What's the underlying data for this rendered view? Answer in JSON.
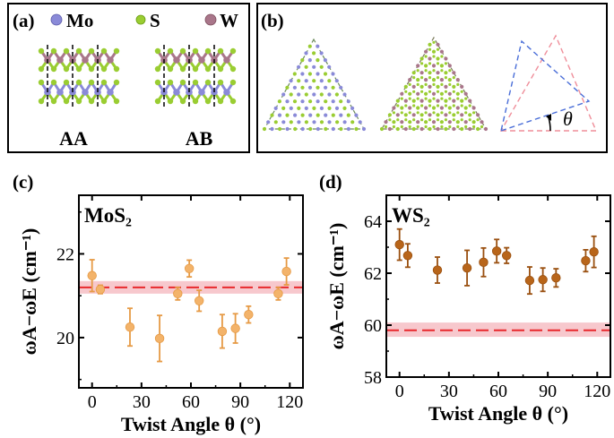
{
  "panel_a": {
    "label": "(a)",
    "legend": [
      {
        "symbol": "Mo",
        "color": "#8a8ad8"
      },
      {
        "symbol": "S",
        "color": "#9acd32"
      },
      {
        "symbol": "W",
        "color": "#a9768a"
      }
    ],
    "stackings": [
      "AA",
      "AB"
    ]
  },
  "panel_b": {
    "label": "(b)",
    "angle_symbol": "θ"
  },
  "colors": {
    "mo": "#8a8ad8",
    "s": "#9acd32",
    "w": "#a9768a",
    "mos2_points": "#f3b36a",
    "mos2_err": "#e69a45",
    "ws2_points": "#b8651a",
    "ws2_err": "#9a5010",
    "reference_line": "#e8282d",
    "reference_band": "#f7c8cd",
    "blue_dash": "#4a6ed8",
    "pink_dash": "#ef8e9a"
  },
  "chart_data": [
    {
      "panel": "(c)",
      "type": "scatter",
      "label": "MoS₂",
      "xlabel": "Twist Angle θ (°)",
      "ylabel": "ωA−ωE (cm⁻¹)",
      "xlim": [
        -8,
        128
      ],
      "ylim": [
        18.8,
        23.4
      ],
      "xticks": [
        0,
        30,
        60,
        90,
        120
      ],
      "yticks": [
        20,
        22
      ],
      "reference": {
        "value": 21.2,
        "band": [
          21.05,
          21.35
        ]
      },
      "points": [
        {
          "x": 0,
          "y": 21.48,
          "err": 0.38
        },
        {
          "x": 5,
          "y": 21.15,
          "err": 0.1
        },
        {
          "x": 23,
          "y": 20.25,
          "err": 0.45
        },
        {
          "x": 41,
          "y": 19.98,
          "err": 0.55
        },
        {
          "x": 52,
          "y": 21.05,
          "err": 0.15
        },
        {
          "x": 59,
          "y": 21.65,
          "err": 0.2
        },
        {
          "x": 65,
          "y": 20.88,
          "err": 0.25
        },
        {
          "x": 79,
          "y": 20.15,
          "err": 0.4
        },
        {
          "x": 87,
          "y": 20.22,
          "err": 0.35
        },
        {
          "x": 95,
          "y": 20.55,
          "err": 0.2
        },
        {
          "x": 113,
          "y": 21.05,
          "err": 0.15
        },
        {
          "x": 118,
          "y": 21.58,
          "err": 0.32
        }
      ]
    },
    {
      "panel": "(d)",
      "type": "scatter",
      "label": "WS₂",
      "xlabel": "Twist Angle θ (°)",
      "ylabel": "ωA−ωE (cm⁻¹)",
      "xlim": [
        -8,
        128
      ],
      "ylim": [
        58.0,
        65.0
      ],
      "xticks": [
        0,
        30,
        60,
        90,
        120
      ],
      "yticks": [
        58,
        60,
        62,
        64
      ],
      "reference": {
        "value": 59.8,
        "band": [
          59.55,
          60.1
        ]
      },
      "points": [
        {
          "x": 0,
          "y": 63.1,
          "err": 0.6
        },
        {
          "x": 5,
          "y": 62.68,
          "err": 0.45
        },
        {
          "x": 23,
          "y": 62.12,
          "err": 0.5
        },
        {
          "x": 41,
          "y": 62.2,
          "err": 0.68
        },
        {
          "x": 51,
          "y": 62.42,
          "err": 0.55
        },
        {
          "x": 59,
          "y": 62.85,
          "err": 0.45
        },
        {
          "x": 65,
          "y": 62.68,
          "err": 0.3
        },
        {
          "x": 79,
          "y": 61.72,
          "err": 0.52
        },
        {
          "x": 87,
          "y": 61.75,
          "err": 0.45
        },
        {
          "x": 95,
          "y": 61.82,
          "err": 0.35
        },
        {
          "x": 113,
          "y": 62.48,
          "err": 0.42
        },
        {
          "x": 118,
          "y": 62.82,
          "err": 0.6
        }
      ]
    }
  ]
}
